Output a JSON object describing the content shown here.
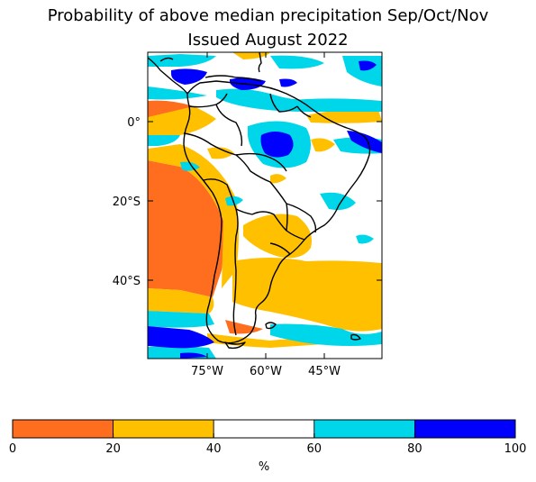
{
  "title_line1": "Probability of above median precipitation Sep/Oct/Nov",
  "title_line2": "Issued August 2022",
  "map": {
    "lat_ticks": [
      "0°",
      "20°S",
      "40°S"
    ],
    "lon_ticks": [
      "75°W",
      "60°W",
      "45°W"
    ],
    "lat_values": [
      0,
      -20,
      -40
    ],
    "lon_values": [
      -75,
      -60,
      -45
    ],
    "extent": {
      "lon_min": -90,
      "lon_max": -30,
      "lat_min": -60,
      "lat_max": 17
    }
  },
  "colorbar": {
    "unit_label": "%",
    "ticks": [
      "0",
      "20",
      "40",
      "60",
      "80",
      "100"
    ],
    "bins": [
      {
        "from": 0,
        "to": 20,
        "color": "#ff6d1f"
      },
      {
        "from": 20,
        "to": 40,
        "color": "#ffc000"
      },
      {
        "from": 40,
        "to": 60,
        "color": "#ffffff"
      },
      {
        "from": 60,
        "to": 80,
        "color": "#00d6e9"
      },
      {
        "from": 80,
        "to": 100,
        "color": "#0000ff"
      }
    ]
  }
}
